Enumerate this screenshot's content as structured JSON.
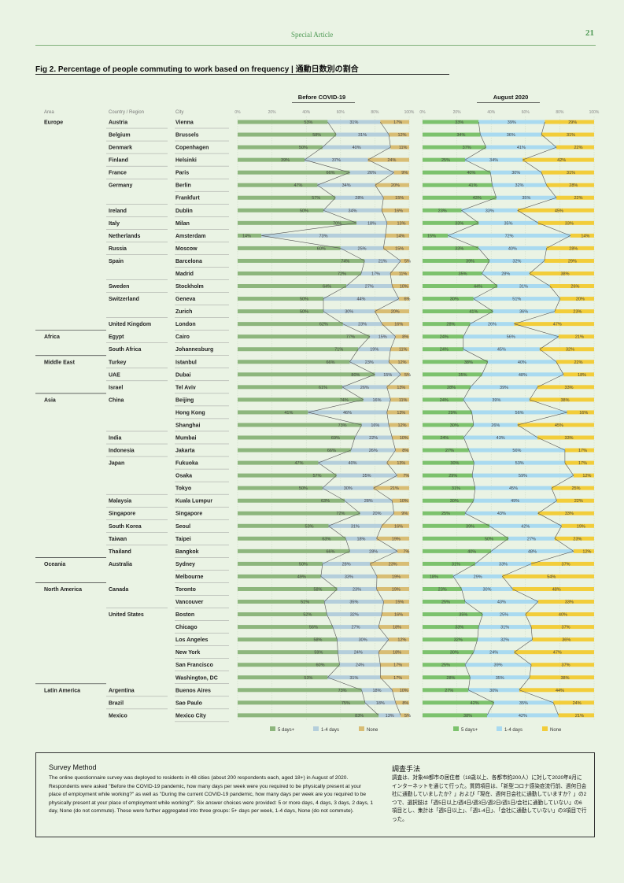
{
  "header": {
    "section": "Special Article",
    "page": "21"
  },
  "figure": {
    "title": "Fig 2. Percentage of people commuting to work based on frequency | 通動日数別の割合"
  },
  "survey": {
    "title_en": "Survey Method",
    "body_en": "The online questionnaire survey was deployed to residents in 48 cities (about 200 respondents each, aged 18+) in August of 2020. Respondents were asked \"Before the COVID-19 pandemic, how many days per week were you required to be physically present at your place of employment while working?\" as well as \"During the current COVID-19 pandemic, how many days per week are you required to be physically present at your place of employment while working?\". Six answer choices were provided: 5 or more days, 4 days, 3 days, 2 days, 1 day, None (do not commute). These were further aggregated into three groups: 5+ days per week, 1-4 days, None (do not commute).",
    "title_jp": "調査手法",
    "body_jp": "調査は、対象48都市の居住者（18歳以上、各都市約200人）に対して2020年8月にインターネットを通じて行った。質問項目は、「新型コロナ感染症流行前、週何日会社に通勤していましたか？」および「現在、週何日会社に通勤していますか？」の2つで、選択肢は「週5日以上/週4日/週3日/週2日/週1日/会社に通勤していない」の6項目とし、集計は「週5日以上」、「週1-4日」、「会社に通勤していない」の3項目で行った。"
  },
  "chart_data": {
    "type": "bar",
    "stacked": true,
    "orientation": "horizontal",
    "columns": {
      "area": "Area",
      "country": "Country / Region",
      "city": "City"
    },
    "panels": [
      {
        "title": "Before COVID-19",
        "key": "before"
      },
      {
        "title": "August 2020",
        "key": "after"
      }
    ],
    "x_ticks": [
      "0%",
      "20%",
      "40%",
      "60%",
      "80%",
      "100%"
    ],
    "xlim": [
      0,
      100
    ],
    "series": [
      {
        "name": "5 days+",
        "color_before": "#8db67d",
        "color_after": "#7cc26d"
      },
      {
        "name": "1-4 days",
        "color_before": "#b4cedb",
        "color_after": "#a9daf0"
      },
      {
        "name": "None",
        "color_before": "#d8bd74",
        "color_after": "#f2cd3a"
      }
    ],
    "rows": [
      {
        "area": "Europe",
        "country": "Austria",
        "city": "Vienna",
        "before": [
          53,
          31,
          17
        ],
        "after": [
          33,
          39,
          29
        ]
      },
      {
        "area": "",
        "country": "Belgium",
        "city": "Brussels",
        "before": [
          58,
          31,
          12
        ],
        "after": [
          34,
          36,
          31
        ]
      },
      {
        "area": "",
        "country": "Denmark",
        "city": "Copenhagen",
        "before": [
          50,
          40,
          11
        ],
        "after": [
          37,
          41,
          22
        ]
      },
      {
        "area": "",
        "country": "Finland",
        "city": "Helsinki",
        "before": [
          39,
          37,
          24
        ],
        "after": [
          25,
          34,
          42
        ]
      },
      {
        "area": "",
        "country": "France",
        "city": "Paris",
        "before": [
          66,
          26,
          9
        ],
        "after": [
          40,
          30,
          31
        ]
      },
      {
        "area": "",
        "country": "Germany",
        "city": "Berlin",
        "before": [
          47,
          34,
          20
        ],
        "after": [
          41,
          32,
          28
        ]
      },
      {
        "area": "",
        "country": "",
        "city": "Frankfurt",
        "before": [
          57,
          28,
          15
        ],
        "after": [
          43,
          35,
          22
        ]
      },
      {
        "area": "",
        "country": "Ireland",
        "city": "Dublin",
        "before": [
          50,
          34,
          16
        ],
        "after": [
          23,
          33,
          45
        ]
      },
      {
        "area": "",
        "country": "Italy",
        "city": "Milan",
        "before": [
          70,
          18,
          13
        ],
        "after": [
          33,
          35,
          33
        ]
      },
      {
        "area": "",
        "country": "Netherlands",
        "city": "Amsterdam",
        "before": [
          14,
          73,
          14
        ],
        "after": [
          15,
          72,
          14
        ]
      },
      {
        "area": "",
        "country": "Russia",
        "city": "Moscow",
        "before": [
          60,
          25,
          15
        ],
        "after": [
          33,
          40,
          28
        ]
      },
      {
        "area": "",
        "country": "Spain",
        "city": "Barcelona",
        "before": [
          74,
          21,
          5
        ],
        "after": [
          39,
          32,
          29
        ]
      },
      {
        "area": "",
        "country": "",
        "city": "Madrid",
        "before": [
          72,
          17,
          11
        ],
        "after": [
          35,
          28,
          38
        ]
      },
      {
        "area": "",
        "country": "Sweden",
        "city": "Stockholm",
        "before": [
          64,
          27,
          10
        ],
        "after": [
          44,
          31,
          26
        ]
      },
      {
        "area": "",
        "country": "Switzerland",
        "city": "Geneva",
        "before": [
          50,
          44,
          6
        ],
        "after": [
          30,
          51,
          20
        ]
      },
      {
        "area": "",
        "country": "",
        "city": "Zurich",
        "before": [
          50,
          30,
          20
        ],
        "after": [
          41,
          36,
          23
        ]
      },
      {
        "area": "",
        "country": "United Kingdom",
        "city": "London",
        "before": [
          62,
          23,
          16
        ],
        "after": [
          28,
          26,
          47
        ]
      },
      {
        "area": "Africa",
        "country": "Egypt",
        "city": "Cairo",
        "before": [
          77,
          15,
          8
        ],
        "after": [
          24,
          56,
          21
        ]
      },
      {
        "area": "",
        "country": "South Africa",
        "city": "Johannesburg",
        "before": [
          71,
          19,
          11
        ],
        "after": [
          24,
          45,
          32
        ]
      },
      {
        "area": "Middle East",
        "country": "Turkey",
        "city": "Istanbul",
        "before": [
          66,
          23,
          12
        ],
        "after": [
          38,
          40,
          22
        ]
      },
      {
        "area": "",
        "country": "UAE",
        "city": "Dubai",
        "before": [
          80,
          15,
          5
        ],
        "after": [
          35,
          48,
          18
        ]
      },
      {
        "area": "",
        "country": "Israel",
        "city": "Tel Aviv",
        "before": [
          61,
          26,
          13
        ],
        "after": [
          28,
          39,
          33
        ]
      },
      {
        "area": "Asia",
        "country": "China",
        "city": "Beijing",
        "before": [
          74,
          16,
          11
        ],
        "after": [
          24,
          39,
          38
        ]
      },
      {
        "area": "",
        "country": "",
        "city": "Hong Kong",
        "before": [
          41,
          46,
          13
        ],
        "after": [
          29,
          56,
          16
        ]
      },
      {
        "area": "",
        "country": "",
        "city": "Shanghai",
        "before": [
          73,
          16,
          12
        ],
        "after": [
          30,
          26,
          45
        ]
      },
      {
        "area": "",
        "country": "India",
        "city": "Mumbai",
        "before": [
          69,
          22,
          10
        ],
        "after": [
          24,
          43,
          33
        ]
      },
      {
        "area": "",
        "country": "Indonesia",
        "city": "Jakarta",
        "before": [
          66,
          26,
          8
        ],
        "after": [
          27,
          56,
          17
        ]
      },
      {
        "area": "",
        "country": "Japan",
        "city": "Fukuoka",
        "before": [
          47,
          40,
          13
        ],
        "after": [
          30,
          53,
          17
        ]
      },
      {
        "area": "",
        "country": "",
        "city": "Osaka",
        "before": [
          57,
          35,
          7
        ],
        "after": [
          29,
          59,
          12
        ]
      },
      {
        "area": "",
        "country": "",
        "city": "Tokyo",
        "before": [
          50,
          30,
          21
        ],
        "after": [
          31,
          45,
          25
        ]
      },
      {
        "area": "",
        "country": "Malaysia",
        "city": "Kuala Lumpur",
        "before": [
          63,
          28,
          10
        ],
        "after": [
          30,
          49,
          22
        ]
      },
      {
        "area": "",
        "country": "Singapore",
        "city": "Singapore",
        "before": [
          72,
          20,
          9
        ],
        "after": [
          25,
          43,
          33
        ]
      },
      {
        "area": "",
        "country": "South Korea",
        "city": "Seoul",
        "before": [
          53,
          31,
          16
        ],
        "after": [
          39,
          42,
          19
        ]
      },
      {
        "area": "",
        "country": "Taiwan",
        "city": "Taipei",
        "before": [
          63,
          18,
          19
        ],
        "after": [
          50,
          27,
          23
        ]
      },
      {
        "area": "",
        "country": "Thailand",
        "city": "Bangkok",
        "before": [
          66,
          28,
          7
        ],
        "after": [
          40,
          48,
          12
        ]
      },
      {
        "area": "Oceania",
        "country": "Australia",
        "city": "Sydney",
        "before": [
          50,
          28,
          23
        ],
        "after": [
          31,
          33,
          37
        ]
      },
      {
        "area": "",
        "country": "",
        "city": "Melbourne",
        "before": [
          49,
          33,
          19
        ],
        "after": [
          18,
          29,
          54
        ]
      },
      {
        "area": "North America",
        "country": "Canada",
        "city": "Toronto",
        "before": [
          58,
          23,
          19
        ],
        "after": [
          23,
          30,
          48
        ]
      },
      {
        "area": "",
        "country": "",
        "city": "Vancouver",
        "before": [
          51,
          35,
          15
        ],
        "after": [
          25,
          43,
          33
        ]
      },
      {
        "area": "",
        "country": "United States",
        "city": "Boston",
        "before": [
          52,
          32,
          16
        ],
        "after": [
          35,
          25,
          40
        ]
      },
      {
        "area": "",
        "country": "",
        "city": "Chicago",
        "before": [
          56,
          27,
          18
        ],
        "after": [
          33,
          31,
          37
        ]
      },
      {
        "area": "",
        "country": "",
        "city": "Los Angeles",
        "before": [
          58,
          30,
          12
        ],
        "after": [
          32,
          32,
          36
        ]
      },
      {
        "area": "",
        "country": "",
        "city": "New York",
        "before": [
          59,
          24,
          18
        ],
        "after": [
          30,
          24,
          47
        ]
      },
      {
        "area": "",
        "country": "",
        "city": "San Francisco",
        "before": [
          60,
          24,
          17
        ],
        "after": [
          25,
          39,
          37
        ]
      },
      {
        "area": "",
        "country": "",
        "city": "Washington, DC",
        "before": [
          53,
          31,
          17
        ],
        "after": [
          28,
          35,
          38
        ]
      },
      {
        "area": "Latin America",
        "country": "Argentina",
        "city": "Buenos Aires",
        "before": [
          73,
          18,
          10
        ],
        "after": [
          27,
          30,
          44
        ]
      },
      {
        "area": "",
        "country": "Brazil",
        "city": "Sao Paulo",
        "before": [
          75,
          18,
          8
        ],
        "after": [
          42,
          35,
          24
        ]
      },
      {
        "area": "",
        "country": "Mexico",
        "city": "Mexico City",
        "before": [
          83,
          13,
          5
        ],
        "after": [
          38,
          42,
          21
        ]
      }
    ]
  }
}
